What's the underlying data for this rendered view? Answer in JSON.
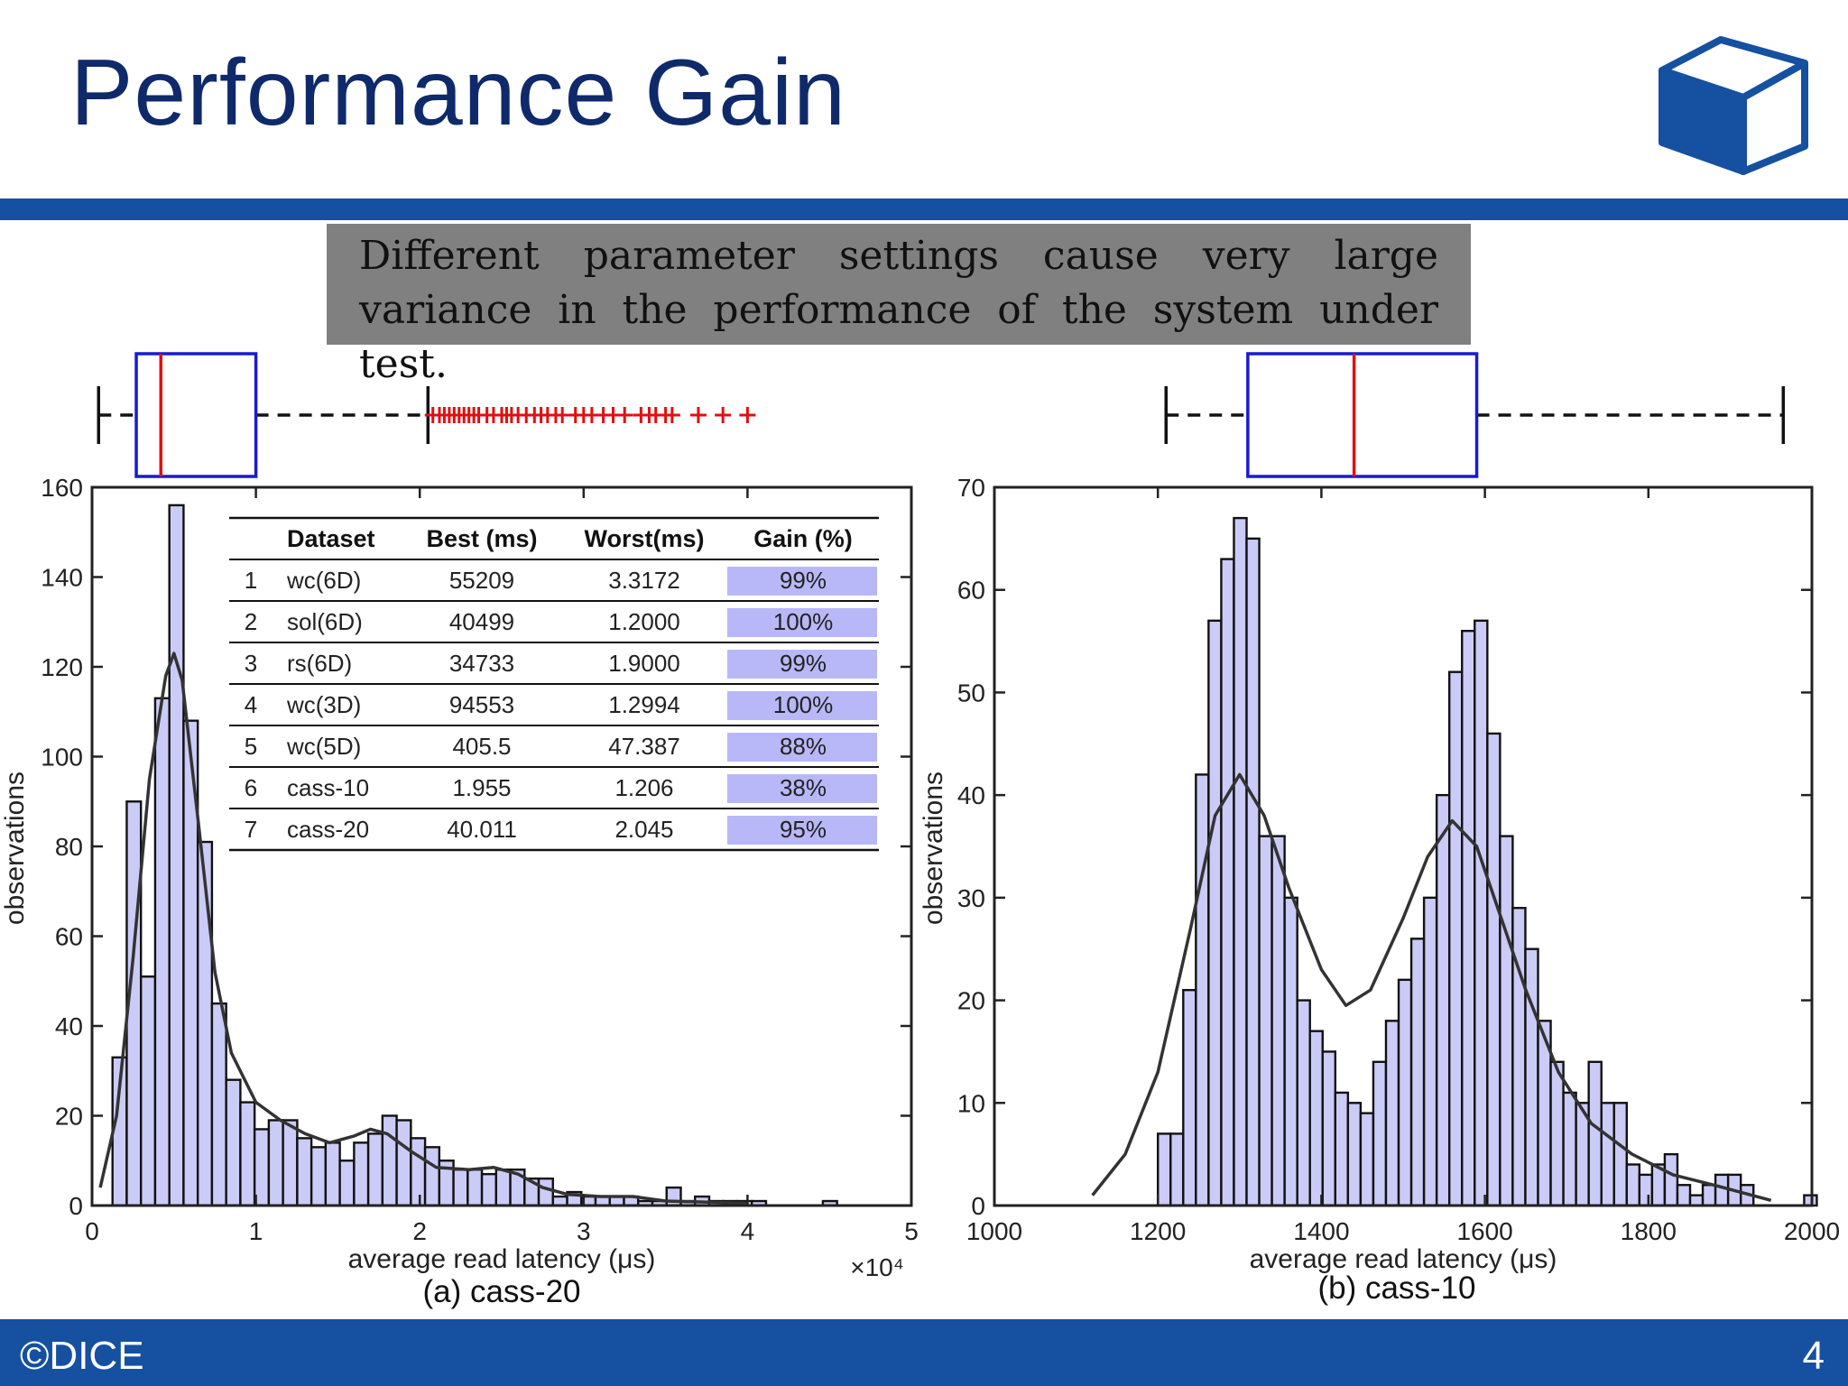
{
  "slide": {
    "title": "Performance Gain",
    "callout": "Different parameter settings cause very large variance in the performance of the system under test.",
    "footer_left": "©DICE",
    "page_number": "4",
    "bar_color": "#1650a0",
    "title_color": "#0f2a6b",
    "logo_icon": "cube-icon"
  },
  "table": {
    "headers": [
      "Dataset",
      "Best (ms)",
      "Worst(ms)",
      "Gain (%)"
    ],
    "rows": [
      [
        "1",
        "wc(6D)",
        "55209",
        "3.3172",
        "99%"
      ],
      [
        "2",
        "sol(6D)",
        "40499",
        "1.2000",
        "100%"
      ],
      [
        "3",
        "rs(6D)",
        "34733",
        "1.9000",
        "99%"
      ],
      [
        "4",
        "wc(3D)",
        "94553",
        "1.2994",
        "100%"
      ],
      [
        "5",
        "wc(5D)",
        "405.5",
        "47.387",
        "88%"
      ],
      [
        "6",
        "cass-10",
        "1.955",
        "1.206",
        "38%"
      ],
      [
        "7",
        "cass-20",
        "40.011",
        "2.045",
        "95%"
      ]
    ],
    "gain_highlight_color": "#b8b8f8"
  },
  "chart_data": [
    {
      "type": "bar",
      "subtype": "histogram",
      "caption": "(a) cass-20",
      "xlabel": "average read latency (μs)",
      "ylabel": "observations",
      "x_multiplier": "×10⁴",
      "xlim": [
        0,
        5
      ],
      "ylim": [
        0,
        160
      ],
      "xticks": [
        0,
        1,
        2,
        3,
        4,
        5
      ],
      "yticks": [
        0,
        20,
        40,
        60,
        80,
        100,
        120,
        140,
        160
      ],
      "bin_start": 0.125,
      "bin_width": 0.0867,
      "values": [
        33,
        90,
        51,
        113,
        156,
        108,
        81,
        45,
        28,
        23,
        17,
        19,
        19,
        15,
        13,
        14,
        10,
        14,
        16,
        20,
        19,
        15,
        13,
        10,
        8,
        8,
        7,
        8,
        8,
        6,
        6,
        2,
        3,
        2,
        2,
        2,
        2,
        1,
        1,
        4,
        1,
        2,
        1,
        1,
        1,
        1,
        0,
        0,
        0,
        0,
        1
      ],
      "density_curve": [
        [
          0.05,
          4
        ],
        [
          0.15,
          20
        ],
        [
          0.25,
          55
        ],
        [
          0.35,
          95
        ],
        [
          0.45,
          118
        ],
        [
          0.5,
          123
        ],
        [
          0.55,
          117
        ],
        [
          0.65,
          85
        ],
        [
          0.75,
          52
        ],
        [
          0.85,
          34
        ],
        [
          1.0,
          23
        ],
        [
          1.15,
          19
        ],
        [
          1.3,
          16
        ],
        [
          1.45,
          14
        ],
        [
          1.6,
          15.5
        ],
        [
          1.7,
          17
        ],
        [
          1.8,
          16
        ],
        [
          1.95,
          12
        ],
        [
          2.1,
          8.5
        ],
        [
          2.3,
          8
        ],
        [
          2.45,
          8.5
        ],
        [
          2.6,
          7
        ],
        [
          2.75,
          4
        ],
        [
          2.9,
          2.5
        ],
        [
          3.1,
          2
        ],
        [
          3.3,
          2
        ],
        [
          3.5,
          1
        ],
        [
          4.0,
          0.5
        ]
      ],
      "colors": {
        "bar_fill": "#cbcbf7",
        "curve": "#333333"
      }
    },
    {
      "type": "bar",
      "subtype": "histogram",
      "caption": "(b) cass-10",
      "xlabel": "average read latency (μs)",
      "ylabel": "observations",
      "xlim": [
        1000,
        2000
      ],
      "ylim": [
        0,
        70
      ],
      "xticks": [
        1000,
        1200,
        1400,
        1600,
        1800,
        2000
      ],
      "yticks": [
        0,
        10,
        20,
        30,
        40,
        50,
        60,
        70
      ],
      "bin_start": 1200,
      "bin_width": 15.5,
      "values": [
        7,
        7,
        21,
        42,
        57,
        63,
        67,
        65,
        36,
        36,
        30,
        20,
        17,
        15,
        11,
        10,
        9,
        14,
        18,
        22,
        26,
        30,
        40,
        52,
        56,
        57,
        46,
        36,
        29,
        25,
        18,
        14,
        11,
        10,
        14,
        10,
        10,
        4,
        3,
        4,
        5,
        2,
        1,
        2,
        3,
        3,
        2,
        0,
        0,
        0,
        0,
        1
      ],
      "density_curve": [
        [
          1120,
          1
        ],
        [
          1160,
          5
        ],
        [
          1200,
          13
        ],
        [
          1240,
          27
        ],
        [
          1270,
          38
        ],
        [
          1300,
          42
        ],
        [
          1330,
          38
        ],
        [
          1360,
          31
        ],
        [
          1400,
          23
        ],
        [
          1430,
          19.5
        ],
        [
          1460,
          21
        ],
        [
          1500,
          28
        ],
        [
          1530,
          34
        ],
        [
          1560,
          37.5
        ],
        [
          1590,
          35
        ],
        [
          1620,
          28
        ],
        [
          1650,
          21
        ],
        [
          1690,
          13
        ],
        [
          1730,
          8
        ],
        [
          1780,
          5
        ],
        [
          1830,
          3
        ],
        [
          1880,
          2
        ],
        [
          1950,
          0.5
        ]
      ],
      "colors": {
        "bar_fill": "#cbcbf7",
        "curve": "#333333"
      }
    },
    {
      "type": "boxplot",
      "axis": "cass-20",
      "q1": 0.27,
      "median": 0.42,
      "q3": 1.0,
      "whisker_low": 0.04,
      "whisker_high": 2.05,
      "outliers": [
        2.08,
        2.12,
        2.15,
        2.18,
        2.21,
        2.24,
        2.27,
        2.3,
        2.33,
        2.36,
        2.41,
        2.45,
        2.5,
        2.53,
        2.56,
        2.6,
        2.65,
        2.7,
        2.74,
        2.78,
        2.83,
        2.87,
        2.95,
        3.0,
        3.05,
        3.12,
        3.18,
        3.25,
        3.35,
        3.4,
        3.44,
        3.5,
        3.54,
        3.7,
        3.85,
        4.0
      ],
      "colors": {
        "box": "#1a1ad0",
        "median": "#e01010",
        "outlier": "#e01010"
      }
    },
    {
      "type": "boxplot",
      "axis": "cass-10",
      "q1": 1310,
      "median": 1440,
      "q3": 1590,
      "whisker_low": 1210,
      "whisker_high": 1965,
      "outliers": [],
      "colors": {
        "box": "#1a1ad0",
        "median": "#e01010"
      }
    }
  ]
}
